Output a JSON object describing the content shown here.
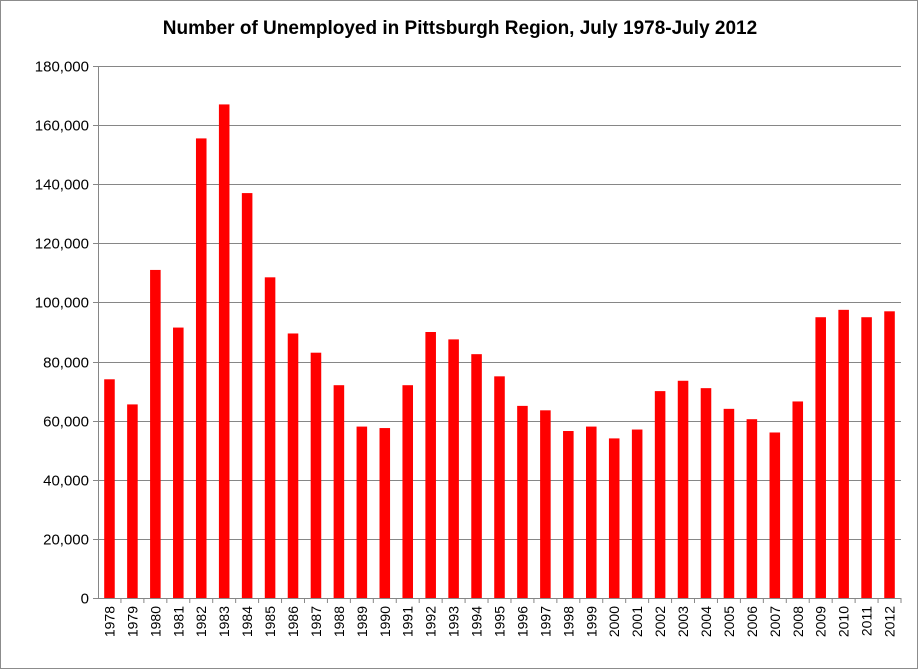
{
  "chart_data": {
    "type": "bar",
    "title": "Number of Unemployed in Pittsburgh Region, July 1978-July 2012",
    "xlabel": "",
    "ylabel": "",
    "ylim": [
      0,
      180000
    ],
    "yticks": [
      "0",
      "20,000",
      "40,000",
      "60,000",
      "80,000",
      "100,000",
      "120,000",
      "140,000",
      "160,000",
      "180,000"
    ],
    "grid": true,
    "legend": "none",
    "bar_color": "#ff0000",
    "categories": [
      "1978",
      "1979",
      "1980",
      "1981",
      "1982",
      "1983",
      "1984",
      "1985",
      "1986",
      "1987",
      "1988",
      "1989",
      "1990",
      "1991",
      "1992",
      "1993",
      "1994",
      "1995",
      "1996",
      "1997",
      "1998",
      "1999",
      "2000",
      "2001",
      "2002",
      "2003",
      "2004",
      "2005",
      "2006",
      "2007",
      "2008",
      "2009",
      "2010",
      "2011",
      "2012"
    ],
    "values": [
      74000,
      65500,
      111000,
      91500,
      155500,
      167000,
      137000,
      108500,
      89500,
      83000,
      72000,
      58000,
      57500,
      72000,
      90000,
      87500,
      82500,
      75000,
      65000,
      63500,
      56500,
      58000,
      54000,
      57000,
      70000,
      73500,
      71000,
      64000,
      60500,
      56000,
      66500,
      95000,
      97500,
      95000,
      97000
    ]
  }
}
